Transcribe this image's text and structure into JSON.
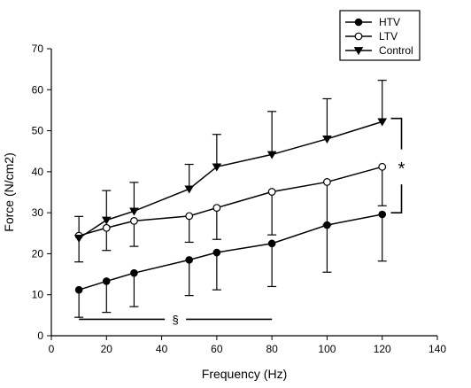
{
  "chart_data": {
    "type": "line",
    "xlabel": "Frequency (Hz)",
    "ylabel": "Force (N/cm2)",
    "xlim": [
      0,
      140
    ],
    "ylim": [
      0,
      70
    ],
    "x_ticks": [
      0,
      20,
      40,
      60,
      80,
      100,
      120,
      140
    ],
    "y_ticks": [
      0,
      10,
      20,
      30,
      40,
      50,
      60,
      70
    ],
    "grid": false,
    "legend_position": "top-right",
    "series": [
      {
        "name": "HTV",
        "marker": "filled-circle",
        "x": [
          10,
          20,
          30,
          50,
          60,
          80,
          100,
          120
        ],
        "y": [
          11.2,
          13.3,
          15.3,
          18.5,
          20.3,
          22.5,
          27.0,
          29.6
        ],
        "error_lower": [
          4.5,
          5.7,
          7.1,
          9.8,
          11.2,
          12.0,
          15.5,
          18.2
        ],
        "error_direction": "down"
      },
      {
        "name": "LTV",
        "marker": "open-circle",
        "x": [
          10,
          20,
          30,
          50,
          60,
          80,
          100,
          120
        ],
        "y": [
          24.4,
          26.3,
          28.0,
          29.2,
          31.2,
          35.1,
          37.5,
          41.2
        ],
        "error_lower": [
          18.0,
          20.8,
          21.8,
          22.8,
          23.5,
          24.6,
          27.0,
          31.7
        ],
        "error_direction": "down"
      },
      {
        "name": "Control",
        "marker": "filled-triangle-down",
        "x": [
          10,
          20,
          30,
          50,
          60,
          80,
          100,
          120
        ],
        "y": [
          23.8,
          28.2,
          30.4,
          35.8,
          41.2,
          44.2,
          48.0,
          52.2
        ],
        "error_upper": [
          29.1,
          35.4,
          37.4,
          41.8,
          49.1,
          54.7,
          57.8,
          62.3
        ],
        "error_direction": "up"
      }
    ],
    "annotations": {
      "bracket_symbol": "*",
      "bracket_from_y": 53.0,
      "bracket_to_y": 30.0,
      "bracket_x": 127,
      "hline_symbol": "§",
      "hline_x_from": 10,
      "hline_x_to": 80,
      "hline_y": 4.0
    }
  }
}
